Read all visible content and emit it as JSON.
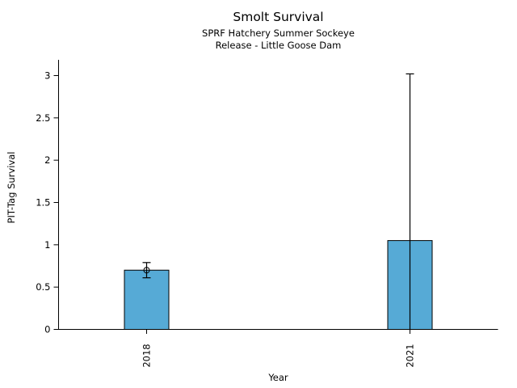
{
  "chart_data": {
    "type": "bar",
    "title": "Smolt Survival",
    "subtitle_line1": "SPRF Hatchery Summer Sockeye",
    "subtitle_line2": "Release - Little Goose Dam",
    "xlabel": "Year",
    "ylabel": "PIT-Tag Survival",
    "categories": [
      "2018",
      "2021"
    ],
    "values": [
      0.7,
      1.05
    ],
    "errors": [
      {
        "low": 0.61,
        "high": 0.79,
        "low_cap": true,
        "high_cap": true
      },
      {
        "low": 0.0,
        "high": 3.02,
        "low_cap": false,
        "high_cap": true
      }
    ],
    "point_markers": [
      {
        "value": 0.7,
        "style": "open-circle"
      },
      null
    ],
    "ylim": [
      0,
      3.2
    ],
    "yticks": [
      0,
      0.5,
      1,
      1.5,
      2,
      2.5,
      3
    ],
    "ytick_labels": [
      "0",
      "0.5",
      "1",
      "1.5",
      "2",
      "2.5",
      "3"
    ],
    "xtick_rotation_deg": -90,
    "grid": false,
    "legend": "none",
    "bar_color": "#56aad6",
    "bar_edge_color": "#000000",
    "axis_color": "#000000",
    "background_color": "#ffffff"
  }
}
